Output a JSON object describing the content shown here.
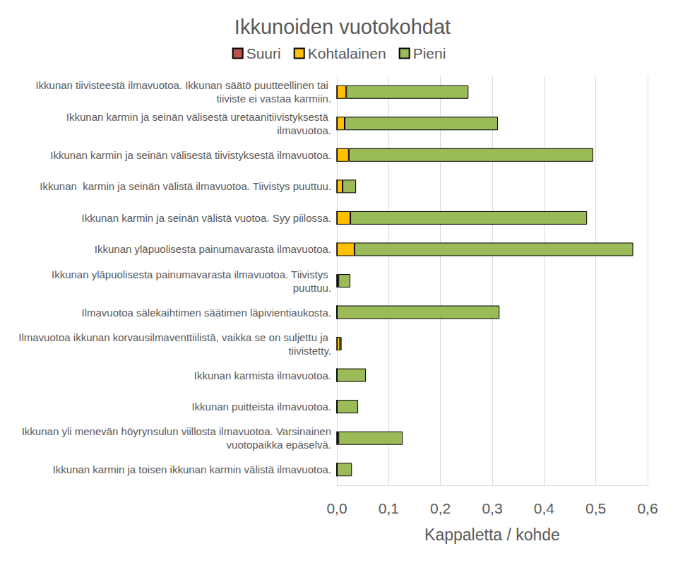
{
  "chart_data": {
    "type": "bar",
    "title": "Ikkunoiden vuotokohdat",
    "orientation": "horizontal",
    "stacked": true,
    "legend": "top",
    "grid": true,
    "data_labels": false,
    "x_label": "Kappaletta / kohde",
    "categories": [
      "Ikkunan tiivisteestä ilmavuotoa. Ikkunan säätö puutteellinen tai tiiviste ei vastaa karmiin.",
      "Ikkunan karmin ja seinän välisestä uretaanitiivistyksestä ilmavuotoa.",
      "Ikkunan karmin ja seinän välisestä tiivistyksestä ilmavuotoa.",
      "Ikkunan  karmin ja seinän välistä ilmavuotoa. Tiivistys puuttuu.",
      "Ikkunan karmin ja seinän välistä vuotoa. Syy piilossa.",
      "Ikkunan yläpuolisesta painumavarasta ilmavuotoa.",
      "Ikkunan yläpuolisesta painumavarasta ilmavuotoa. Tiivistys puuttuu.",
      "Ilmavuotoa sälekaihtimen säätimen läpivientiaukosta.",
      "Ilmavuotoa ikkunan korvausilmaventtiilistä, vaikka se on suljettu ja tiivistetty.",
      "Ikkunan karmista ilmavuotoa.",
      "Ikkunan puitteista ilmavuotoa.",
      "Ikkunan yli menevän höyrynsulun viillosta ilmavuotoa. Varsinainen vuotopaikka epäselvä.",
      "Ikkunan karmin ja toisen ikkunan karmin välistä ilmavuotoa."
    ],
    "series": [
      {
        "name": "Suuri",
        "color": "#c0504d",
        "values": [
          0,
          0,
          0,
          0,
          0,
          0,
          0,
          0,
          0,
          0,
          0,
          0,
          0
        ]
      },
      {
        "name": "Kohtalainen",
        "color": "#ffc000",
        "values": [
          0.018,
          0.015,
          0.023,
          0.011,
          0.026,
          0.034,
          0.003,
          0,
          0.006,
          0,
          0,
          0.003,
          0
        ]
      },
      {
        "name": "Pieni",
        "color": "#9bbb59",
        "values": [
          0.236,
          0.296,
          0.472,
          0.026,
          0.457,
          0.538,
          0.023,
          0.314,
          0.003,
          0.056,
          0.041,
          0.124,
          0.029
        ]
      }
    ],
    "xlim": [
      0,
      0.6
    ],
    "xticks": [
      {
        "value": 0,
        "label": "0,0"
      },
      {
        "value": 0.1,
        "label": "0,1"
      },
      {
        "value": 0.2,
        "label": "0,2"
      },
      {
        "value": 0.3,
        "label": "0,3"
      },
      {
        "value": 0.4,
        "label": "0,4"
      },
      {
        "value": 0.5,
        "label": "0,5"
      },
      {
        "value": 0.6,
        "label": "0,6"
      }
    ]
  }
}
